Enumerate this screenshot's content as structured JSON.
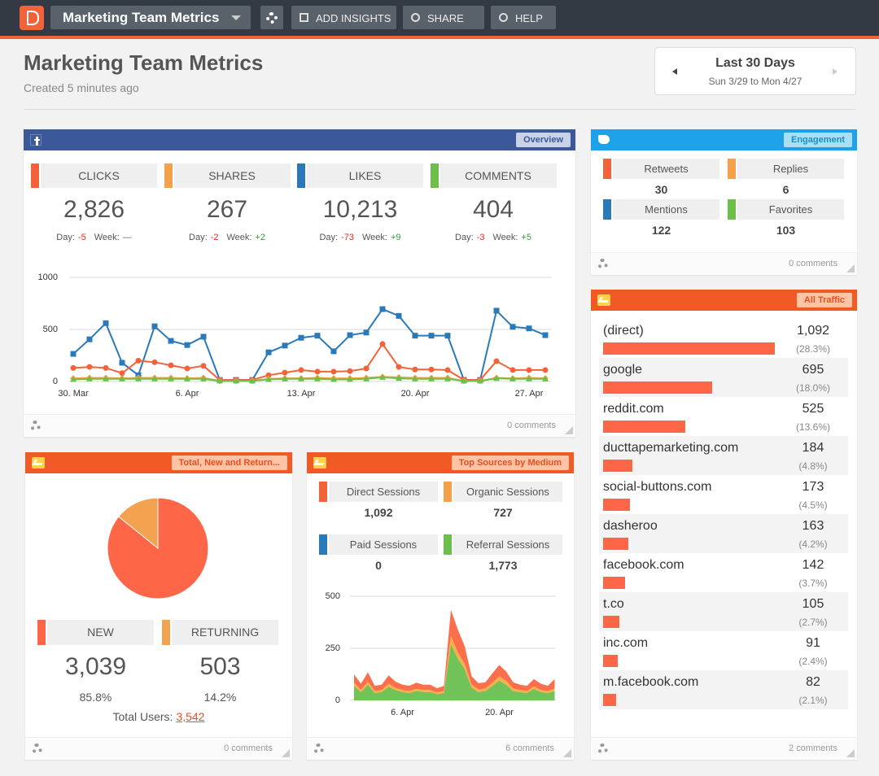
{
  "toolbar": {
    "dashboard": "Marketing Team Metrics",
    "buttons": [
      "ADD INSIGHTS",
      "SHARE",
      "HELP"
    ]
  },
  "header": {
    "title": "Marketing Team Metrics",
    "subtitle": "Created 5 minutes ago",
    "date_range": {
      "label": "Last 30 Days",
      "dates": "Sun 3/29 to Mon 4/27"
    }
  },
  "facebook": {
    "tag": "Overview",
    "day_label": "Day:",
    "week_label": "Week:",
    "metrics": [
      {
        "name": "CLICKS",
        "color": "#f4623a",
        "value": "2,826",
        "day": "-5",
        "week": "—"
      },
      {
        "name": "SHARES",
        "color": "#f5a04a",
        "value": "267",
        "day": "-2",
        "week": "+2"
      },
      {
        "name": "LIKES",
        "color": "#2a7ab9",
        "value": "10,213",
        "day": "-73",
        "week": "+9"
      },
      {
        "name": "COMMENTS",
        "color": "#6cc04a",
        "value": "404",
        "day": "-3",
        "week": "+5"
      }
    ],
    "chart": {
      "type": "line",
      "categories": [
        "30. Mar",
        null,
        null,
        null,
        null,
        null,
        null,
        "6. Apr",
        null,
        null,
        null,
        null,
        null,
        null,
        "13. Apr",
        null,
        null,
        null,
        null,
        null,
        null,
        "20. Apr",
        null,
        null,
        null,
        null,
        null,
        null,
        "27. Apr",
        null
      ],
      "ylim": [
        0,
        1000
      ],
      "yticks": [
        0,
        500,
        1000
      ],
      "grid": true,
      "series": [
        {
          "color": "#2a7ab9",
          "marker": "square",
          "values": [
            265,
            405,
            560,
            180,
            60,
            530,
            390,
            350,
            430,
            15,
            15,
            15,
            280,
            345,
            420,
            440,
            290,
            445,
            470,
            695,
            630,
            440,
            440,
            440,
            15,
            15,
            680,
            525,
            510,
            445
          ]
        },
        {
          "color": "#f4623a",
          "marker": "circle",
          "values": [
            130,
            140,
            130,
            80,
            200,
            185,
            155,
            125,
            150,
            15,
            15,
            15,
            60,
            85,
            110,
            95,
            95,
            100,
            125,
            360,
            140,
            115,
            115,
            110,
            15,
            15,
            195,
            110,
            110,
            110
          ]
        },
        {
          "color": "#f5a04a",
          "marker": "diamond",
          "values": [
            30,
            35,
            35,
            30,
            35,
            35,
            35,
            30,
            35,
            5,
            5,
            5,
            25,
            30,
            30,
            35,
            30,
            30,
            35,
            45,
            40,
            35,
            35,
            35,
            5,
            5,
            35,
            30,
            35,
            30
          ]
        },
        {
          "color": "#6cc04a",
          "marker": "triangle",
          "values": [
            20,
            25,
            25,
            25,
            25,
            25,
            25,
            25,
            25,
            5,
            5,
            5,
            20,
            25,
            25,
            25,
            20,
            20,
            25,
            40,
            30,
            25,
            25,
            25,
            5,
            5,
            30,
            25,
            25,
            25
          ]
        }
      ]
    },
    "comments": "0 comments"
  },
  "twitter": {
    "tag": "Engagement",
    "metrics": [
      {
        "name": "Retweets",
        "color": "#f4623a",
        "value": "30"
      },
      {
        "name": "Replies",
        "color": "#f5a04a",
        "value": "6"
      },
      {
        "name": "Mentions",
        "color": "#2a7ab9",
        "value": "122"
      },
      {
        "name": "Favorites",
        "color": "#6cc04a",
        "value": "103"
      }
    ],
    "comments": "0 comments"
  },
  "users": {
    "tag": "Total, New and Return...",
    "type": "pie",
    "categories": [
      "NEW",
      "RETURNING"
    ],
    "colors": [
      "#fd6647",
      "#f3a24f"
    ],
    "values": [
      3039,
      503
    ],
    "value_labels": [
      "3,039",
      "503"
    ],
    "percent_labels": [
      "85.8%",
      "14.2%"
    ],
    "total_label": "Total Users:",
    "total": "3,542",
    "comments": "0 comments"
  },
  "sources": {
    "tag": "Top Sources by Medium",
    "metrics": [
      {
        "name": "Direct Sessions",
        "color": "#f4623a",
        "value": "1,092"
      },
      {
        "name": "Organic Sessions",
        "color": "#f5a04a",
        "value": "727"
      },
      {
        "name": "Paid Sessions",
        "color": "#2a7ab9",
        "value": "0"
      },
      {
        "name": "Referral Sessions",
        "color": "#6cc04a",
        "value": "1,773"
      }
    ],
    "chart": {
      "type": "area",
      "stacked": true,
      "categories": [
        null,
        null,
        null,
        null,
        null,
        null,
        null,
        "6. Apr",
        null,
        null,
        null,
        null,
        null,
        null,
        null,
        null,
        null,
        null,
        null,
        null,
        null,
        "20. Apr",
        null,
        null,
        null,
        null,
        null,
        null,
        null,
        null
      ],
      "ylim": [
        0,
        500
      ],
      "yticks": [
        0,
        250,
        500
      ],
      "grid": true,
      "series": [
        {
          "color": "#72c25a",
          "values": [
            70,
            40,
            75,
            35,
            40,
            65,
            50,
            40,
            35,
            45,
            40,
            40,
            30,
            35,
            270,
            200,
            150,
            60,
            40,
            45,
            70,
            95,
            75,
            45,
            40,
            35,
            55,
            40,
            35,
            45
          ]
        },
        {
          "color": "#f8b04a",
          "values": [
            15,
            10,
            15,
            10,
            10,
            15,
            10,
            10,
            10,
            10,
            10,
            10,
            8,
            10,
            40,
            30,
            25,
            15,
            12,
            12,
            15,
            20,
            18,
            12,
            10,
            10,
            12,
            10,
            10,
            12
          ]
        },
        {
          "color": "#fb6f4c",
          "values": [
            40,
            30,
            45,
            25,
            25,
            40,
            30,
            25,
            25,
            30,
            25,
            25,
            20,
            25,
            125,
            110,
            85,
            40,
            30,
            30,
            45,
            55,
            45,
            30,
            25,
            25,
            35,
            30,
            25,
            45
          ]
        }
      ]
    },
    "comments": "6 comments"
  },
  "traffic": {
    "tag": "All Traffic",
    "color": "#fd6647",
    "categories": [
      "(direct)",
      "google",
      "reddit.com",
      "ducttapemarketing.com",
      "social-buttons.com",
      "dasheroo",
      "facebook.com",
      "t.co",
      "inc.com",
      "m.facebook.com"
    ],
    "values": [
      1092,
      695,
      525,
      184,
      173,
      163,
      142,
      105,
      91,
      82
    ],
    "value_labels": [
      "1,092",
      "695",
      "525",
      "184",
      "173",
      "163",
      "142",
      "105",
      "91",
      "82"
    ],
    "percent_labels": [
      "(28.3%)",
      "(18.0%)",
      "(13.6%)",
      "(4.8%)",
      "(4.5%)",
      "(4.2%)",
      "(3.7%)",
      "(2.7%)",
      "(2.4%)",
      "(2.1%)"
    ],
    "comments": "2 comments"
  }
}
